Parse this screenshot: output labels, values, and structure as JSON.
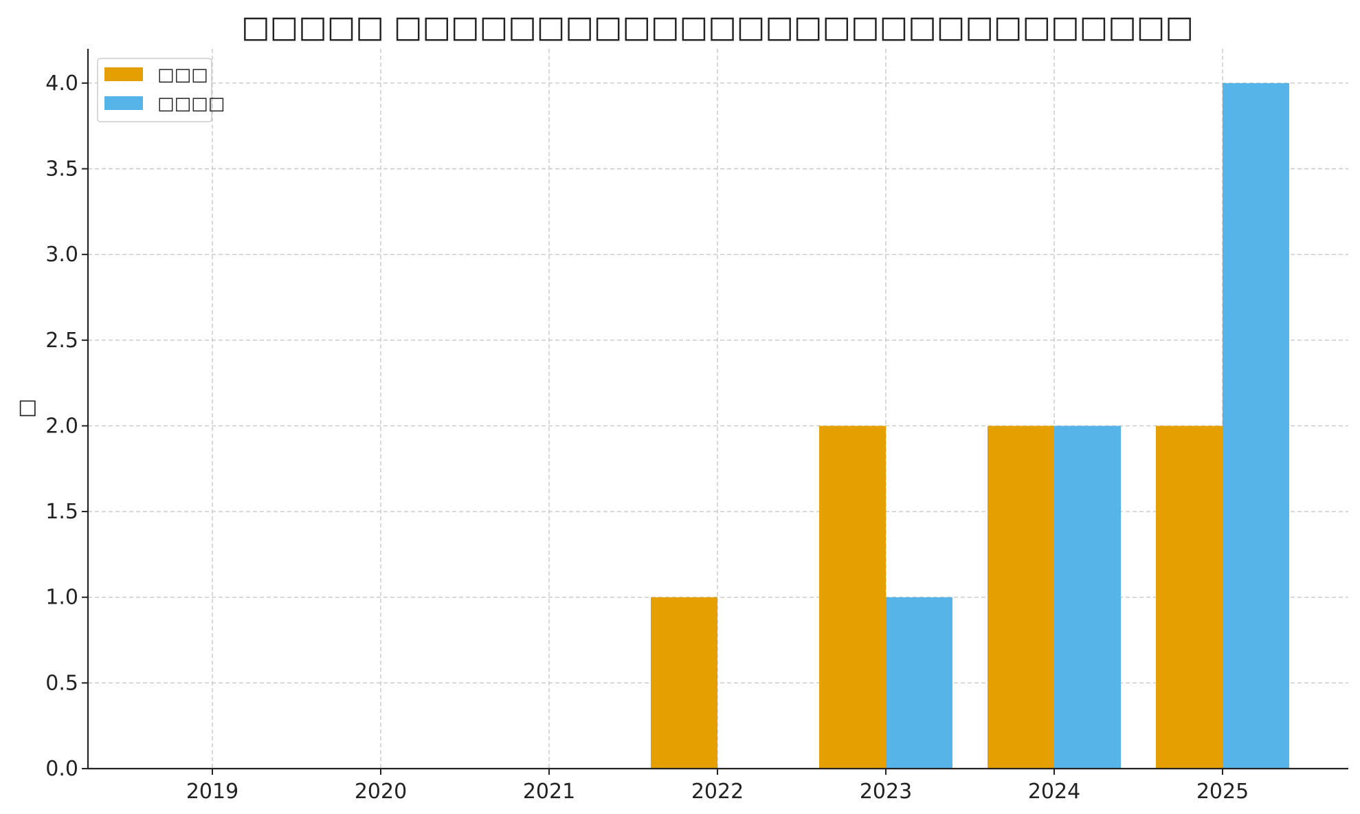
{
  "chart_data": {
    "type": "bar",
    "title": "□□□□□ □□□□□□□□□□□□□□□□□□□□□□□□□□□□",
    "xlabel": "",
    "ylabel": "□",
    "categories": [
      "2019",
      "2020",
      "2021",
      "2022",
      "2023",
      "2024",
      "2025"
    ],
    "series": [
      {
        "name": "□□□",
        "color": "#E69F00",
        "values": [
          0,
          0,
          0,
          1,
          2,
          2,
          2
        ]
      },
      {
        "name": "□□□□",
        "color": "#56B4E9",
        "values": [
          0,
          0,
          0,
          0,
          1,
          2,
          4
        ]
      }
    ],
    "ylim": [
      0,
      4.2
    ],
    "yticks": [
      0.0,
      0.5,
      1.0,
      1.5,
      2.0,
      2.5,
      3.0,
      3.5,
      4.0
    ],
    "ytick_labels": [
      "0.0",
      "0.5",
      "1.0",
      "1.5",
      "2.0",
      "2.5",
      "3.0",
      "3.5",
      "4.0"
    ],
    "grid": true,
    "legend_position": "top-left"
  }
}
